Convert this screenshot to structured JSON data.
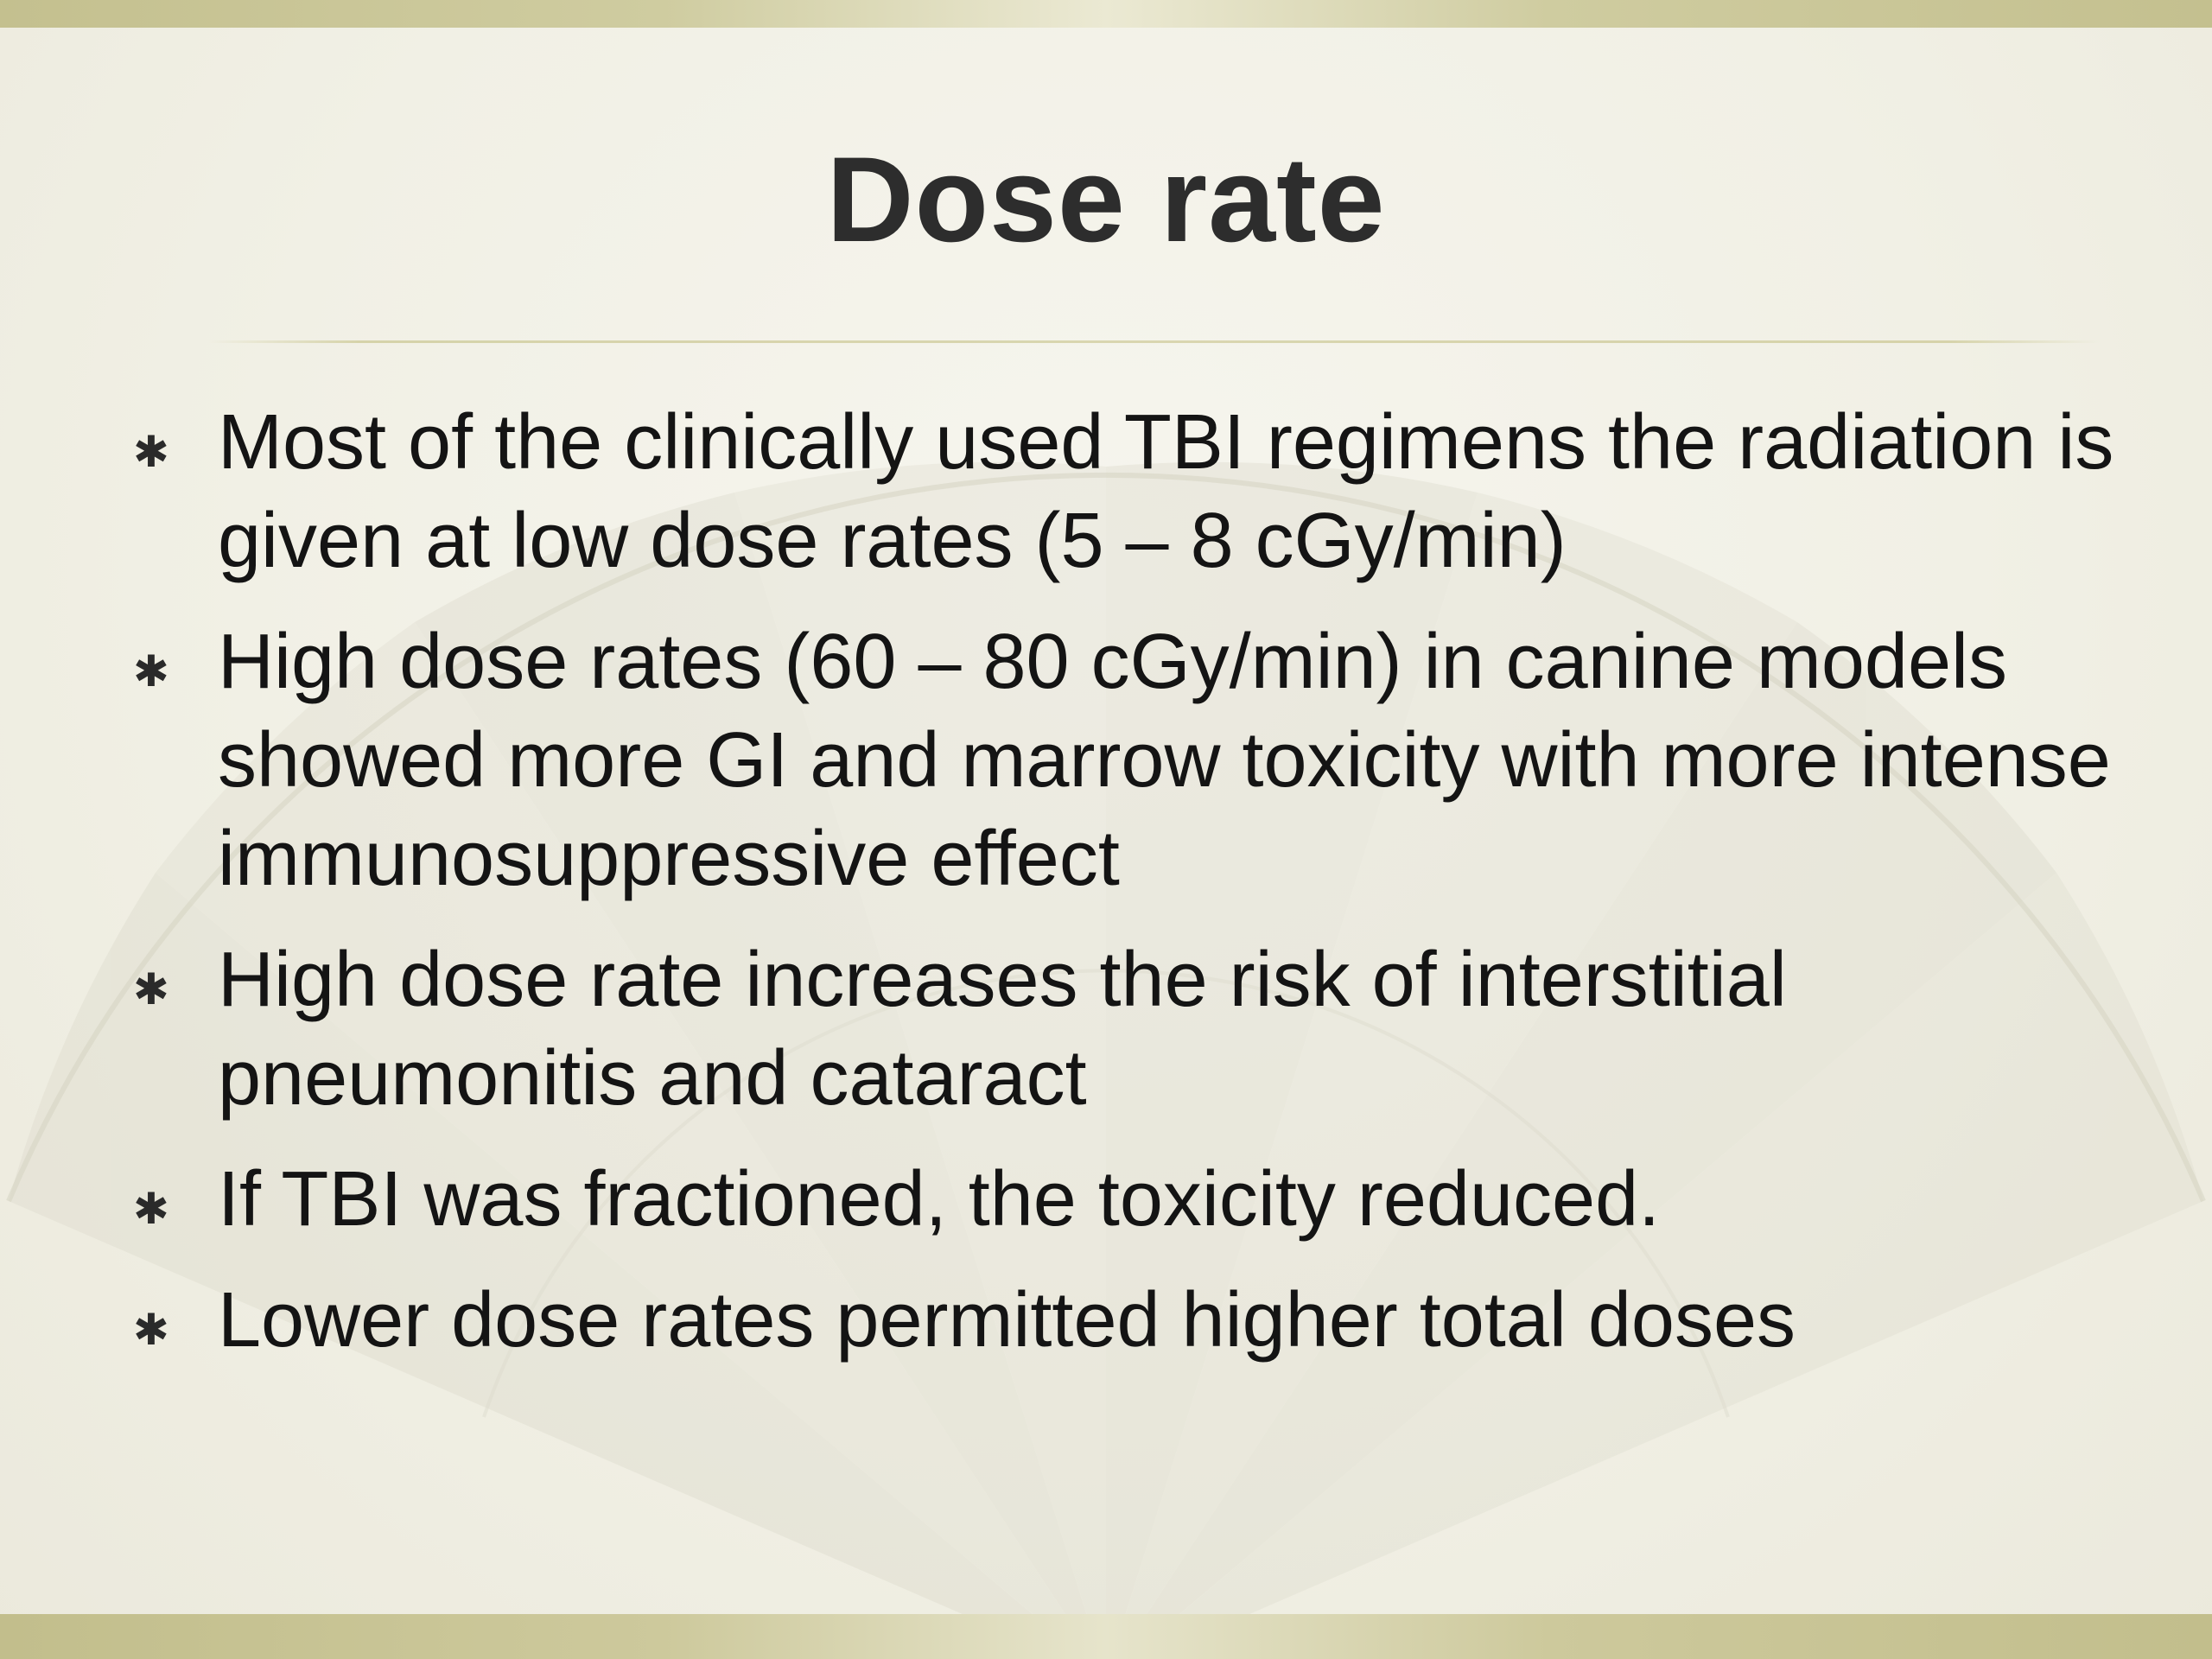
{
  "slide": {
    "title": "Dose rate",
    "bullets": [
      "Most of the clinically used TBI regimens the radiation is given at low dose rates (5 – 8 cGy/min)",
      "High dose rates (60 – 80 cGy/min) in canine models showed more GI and marrow toxicity with more intense immunosuppressive effect",
      "High dose rate increases the risk of interstitial pneumonitis and cataract",
      "If TBI was fractioned, the toxicity reduced.",
      "Lower dose rates permitted higher total doses"
    ],
    "bullet_icon": "asterisk-icon"
  },
  "colors": {
    "background": "#f1f0e6",
    "band": "#c4c08f",
    "title": "#2d2d2d",
    "text": "#141414"
  }
}
